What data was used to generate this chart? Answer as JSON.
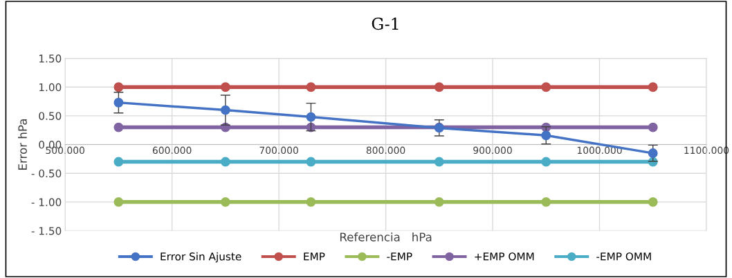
{
  "chart_data": {
    "type": "line",
    "title": "G-1",
    "xlabel": "Referencia   hPa",
    "ylabel": "Error hPa",
    "x": [
      550,
      650,
      730,
      850,
      950,
      1050
    ],
    "series": [
      {
        "name": "Error Sin Ajuste",
        "color": "#4472c4",
        "values": [
          0.73,
          0.6,
          0.48,
          0.29,
          0.16,
          -0.15
        ],
        "errors": [
          0.18,
          0.26,
          0.24,
          0.14,
          0.15,
          0.14
        ]
      },
      {
        "name": "EMP",
        "color": "#c0504d",
        "values": [
          1.0,
          1.0,
          1.0,
          1.0,
          1.0,
          1.0
        ]
      },
      {
        "name": "-EMP",
        "color": "#9bbb59",
        "values": [
          -1.0,
          -1.0,
          -1.0,
          -1.0,
          -1.0,
          -1.0
        ]
      },
      {
        "name": "+EMP OMM",
        "color": "#8064a2",
        "values": [
          0.3,
          0.3,
          0.3,
          0.3,
          0.3,
          0.3
        ]
      },
      {
        "name": "-EMP OMM",
        "color": "#4bacc6",
        "values": [
          -0.3,
          -0.3,
          -0.3,
          -0.3,
          -0.3,
          -0.3
        ]
      }
    ],
    "xlim": [
      500,
      1100
    ],
    "xticks": [
      {
        "value": 500,
        "label": "500.000"
      },
      {
        "value": 600,
        "label": "600.000"
      },
      {
        "value": 700,
        "label": "700.000"
      },
      {
        "value": 800,
        "label": "800.000"
      },
      {
        "value": 900,
        "label": "900.000"
      },
      {
        "value": 1000,
        "label": "1000.000"
      },
      {
        "value": 1100,
        "label": "1100.000"
      }
    ],
    "ylim": [
      -1.5,
      1.5
    ],
    "yticks": [
      {
        "value": 1.5,
        "label": "1.50"
      },
      {
        "value": 1.0,
        "label": "1.00"
      },
      {
        "value": 0.5,
        "label": "0.50"
      },
      {
        "value": 0,
        "label": "0.00"
      },
      {
        "value": -0.5,
        "label": "- 0.50"
      },
      {
        "value": -1.0,
        "label": "- 1.00"
      },
      {
        "value": -1.5,
        "label": "- 1.50"
      }
    ],
    "grid": true,
    "legend": "bottom",
    "marker": "circle",
    "line_style": "solid"
  }
}
